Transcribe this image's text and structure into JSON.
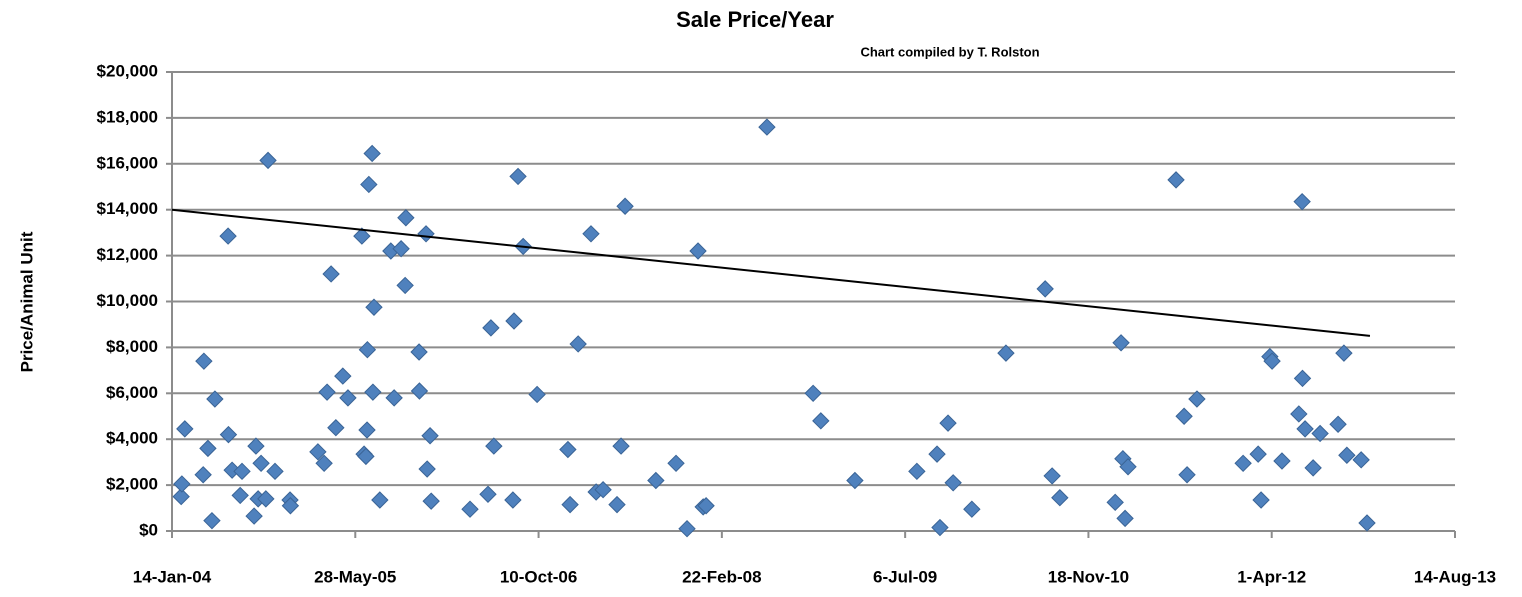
{
  "chart_data": {
    "type": "scatter",
    "title": "Sale Price/Year",
    "subtitle": "Chart compiled by T. Rolston",
    "y_label": "Price/Animal Unit",
    "color": "#4f81bd",
    "grid": true,
    "xlim": [
      "2004-01-14",
      "2013-08-14"
    ],
    "xticks": [
      {
        "value": "2004-01-14",
        "label": "14-Jan-04"
      },
      {
        "value": "2005-05-28",
        "label": "28-May-05"
      },
      {
        "value": "2006-10-10",
        "label": "10-Oct-06"
      },
      {
        "value": "2008-02-22",
        "label": "22-Feb-08"
      },
      {
        "value": "2009-07-06",
        "label": "6-Jul-09"
      },
      {
        "value": "2010-11-18",
        "label": "18-Nov-10"
      },
      {
        "value": "2012-04-01",
        "label": "1-Apr-12"
      },
      {
        "value": "2013-08-14",
        "label": "14-Aug-13"
      }
    ],
    "ylim": [
      0,
      20000
    ],
    "yticks": [
      {
        "value": 0,
        "label": "$0"
      },
      {
        "value": 2000,
        "label": "$2,000"
      },
      {
        "value": 4000,
        "label": "$4,000"
      },
      {
        "value": 6000,
        "label": "$6,000"
      },
      {
        "value": 8000,
        "label": "$8,000"
      },
      {
        "value": 10000,
        "label": "$10,000"
      },
      {
        "value": 12000,
        "label": "$12,000"
      },
      {
        "value": 14000,
        "label": "$14,000"
      },
      {
        "value": 16000,
        "label": "$16,000"
      },
      {
        "value": 18000,
        "label": "$18,000"
      },
      {
        "value": 20000,
        "label": "$20,000"
      }
    ],
    "x": [
      "2004-02-08",
      "2004-02-10",
      "2004-02-18",
      "2004-04-08",
      "2004-04-10",
      "2004-04-21",
      "2004-05-02",
      "2004-05-10",
      "2004-06-15",
      "2004-06-16",
      "2004-06-26",
      "2004-07-18",
      "2004-07-23",
      "2004-08-25",
      "2004-08-30",
      "2004-09-05",
      "2004-09-13",
      "2004-09-26",
      "2004-10-02",
      "2004-10-21",
      "2004-12-01",
      "2004-12-02",
      "2005-02-15",
      "2005-03-04",
      "2005-03-12",
      "2005-03-23",
      "2005-04-05",
      "2005-04-24",
      "2005-05-08",
      "2005-06-15",
      "2005-06-21",
      "2005-06-26",
      "2005-06-29",
      "2005-06-30",
      "2005-07-04",
      "2005-07-13",
      "2005-07-15",
      "2005-07-18",
      "2005-08-03",
      "2005-09-02",
      "2005-09-11",
      "2005-09-30",
      "2005-10-11",
      "2005-10-13",
      "2005-11-18",
      "2005-11-19",
      "2005-12-07",
      "2005-12-10",
      "2005-12-18",
      "2005-12-21",
      "2006-04-06",
      "2006-05-25",
      "2006-06-02",
      "2006-06-10",
      "2006-08-01",
      "2006-08-04",
      "2006-08-15",
      "2006-08-29",
      "2006-10-06",
      "2006-12-29",
      "2007-01-04",
      "2007-01-26",
      "2007-03-02",
      "2007-03-16",
      "2007-04-04",
      "2007-05-12",
      "2007-05-23",
      "2007-06-03",
      "2007-08-26",
      "2007-10-20",
      "2007-11-19",
      "2007-12-19",
      "2008-01-02",
      "2008-01-10",
      "2008-06-24",
      "2008-10-28",
      "2008-11-18",
      "2009-02-19",
      "2009-08-07",
      "2009-10-01",
      "2009-10-09",
      "2009-10-31",
      "2009-11-14",
      "2010-01-04",
      "2010-04-07",
      "2010-07-23",
      "2010-08-11",
      "2010-09-01",
      "2011-01-30",
      "2011-02-15",
      "2011-02-20",
      "2011-02-26",
      "2011-03-06",
      "2011-07-15",
      "2011-08-06",
      "2011-08-14",
      "2011-09-10",
      "2012-01-14",
      "2012-02-24",
      "2012-03-03",
      "2012-03-27",
      "2012-04-02",
      "2012-04-29",
      "2012-06-14",
      "2012-06-23",
      "2012-06-24",
      "2012-07-01",
      "2012-07-23",
      "2012-08-11",
      "2012-09-29",
      "2012-10-15",
      "2012-10-23",
      "2012-12-01",
      "2012-12-17"
    ],
    "values": [
      1500,
      2050,
      4450,
      2450,
      7400,
      3600,
      450,
      5750,
      12850,
      4200,
      2650,
      1550,
      2600,
      650,
      3700,
      1400,
      2950,
      1400,
      16150,
      2600,
      1350,
      1100,
      3450,
      2950,
      6050,
      11200,
      4500,
      6750,
      5800,
      12850,
      3350,
      3250,
      4400,
      7900,
      15100,
      16450,
      6050,
      9750,
      1350,
      12200,
      5800,
      12300,
      10700,
      13650,
      7800,
      6100,
      12950,
      2700,
      4150,
      1300,
      950,
      1600,
      8850,
      3700,
      1350,
      9150,
      15450,
      12400,
      5950,
      3550,
      1150,
      8150,
      12950,
      1700,
      1800,
      1150,
      3700,
      14150,
      2200,
      2950,
      100,
      12200,
      1050,
      1100,
      17600,
      6000,
      4800,
      2200,
      2600,
      3350,
      150,
      4700,
      2100,
      950,
      7750,
      10550,
      2400,
      1450,
      1250,
      8200,
      3150,
      550,
      2800,
      15300,
      5000,
      2450,
      5750,
      2950,
      3350,
      1350,
      7600,
      7400,
      3050,
      5100,
      14350,
      6650,
      4450,
      2750,
      4250,
      4650,
      7750,
      3300,
      3100,
      350
    ],
    "trendline": {
      "x": [
        "2004-01-14",
        "2012-12-25"
      ],
      "values": [
        14000,
        8500
      ],
      "color": "#000000"
    }
  }
}
